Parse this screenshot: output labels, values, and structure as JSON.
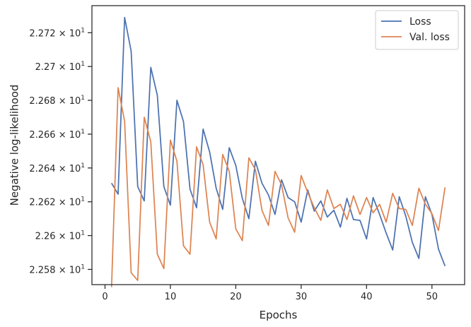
{
  "chart_data": {
    "type": "line",
    "xlabel": "Epochs",
    "ylabel": "Negative log-likelihood",
    "xlim": [
      -2,
      55
    ],
    "ylim": [
      22.571,
      22.736
    ],
    "x_ticks": [
      0,
      10,
      20,
      30,
      40,
      50
    ],
    "x_tick_labels": [
      "0",
      "10",
      "20",
      "30",
      "40",
      "50"
    ],
    "y_ticks": [
      22.58,
      22.6,
      22.62,
      22.64,
      22.66,
      22.68,
      22.7,
      22.72
    ],
    "y_tick_mantissas": [
      "2.258",
      "2.26",
      "2.262",
      "2.264",
      "2.266",
      "2.268",
      "2.27",
      "2.272"
    ],
    "y_tick_suffix": "× 10",
    "y_tick_exponent": "1",
    "grid": false,
    "legend_position": "top-right",
    "x": [
      1,
      2,
      3,
      4,
      5,
      6,
      7,
      8,
      9,
      10,
      11,
      12,
      13,
      14,
      15,
      16,
      17,
      18,
      19,
      20,
      21,
      22,
      23,
      24,
      25,
      26,
      27,
      28,
      29,
      30,
      31,
      32,
      33,
      34,
      35,
      36,
      37,
      38,
      39,
      40,
      41,
      42,
      43,
      44,
      45,
      46,
      47,
      48,
      49,
      50,
      51,
      52
    ],
    "series": [
      {
        "name": "Loss",
        "color": "#4c72b0",
        "values": [
          22.631,
          22.6245,
          22.729,
          22.709,
          22.629,
          22.6205,
          22.6995,
          22.683,
          22.629,
          22.618,
          22.68,
          22.6675,
          22.6275,
          22.6165,
          22.663,
          22.6495,
          22.628,
          22.6155,
          22.652,
          22.6415,
          22.622,
          22.61,
          22.644,
          22.631,
          22.624,
          22.6125,
          22.633,
          22.6225,
          22.62,
          22.608,
          22.627,
          22.6145,
          22.6205,
          22.611,
          22.615,
          22.605,
          22.622,
          22.6095,
          22.609,
          22.598,
          22.6225,
          22.6125,
          22.6015,
          22.5915,
          22.623,
          22.6115,
          22.596,
          22.5865,
          22.623,
          22.6125,
          22.592,
          22.582
        ]
      },
      {
        "name": "Val. loss",
        "color": "#dd8452",
        "values": [
          22.5695,
          22.6875,
          22.6675,
          22.578,
          22.5735,
          22.67,
          22.6555,
          22.589,
          22.5805,
          22.6565,
          22.644,
          22.594,
          22.589,
          22.6525,
          22.642,
          22.608,
          22.598,
          22.648,
          22.638,
          22.604,
          22.597,
          22.646,
          22.639,
          22.615,
          22.606,
          22.638,
          22.63,
          22.6105,
          22.602,
          22.6355,
          22.6255,
          22.6165,
          22.609,
          22.627,
          22.616,
          22.6185,
          22.6095,
          22.6235,
          22.6125,
          22.6225,
          22.6135,
          22.6185,
          22.608,
          22.625,
          22.616,
          22.6155,
          22.606,
          22.628,
          22.6185,
          22.613,
          22.603,
          22.6285
        ]
      }
    ]
  }
}
